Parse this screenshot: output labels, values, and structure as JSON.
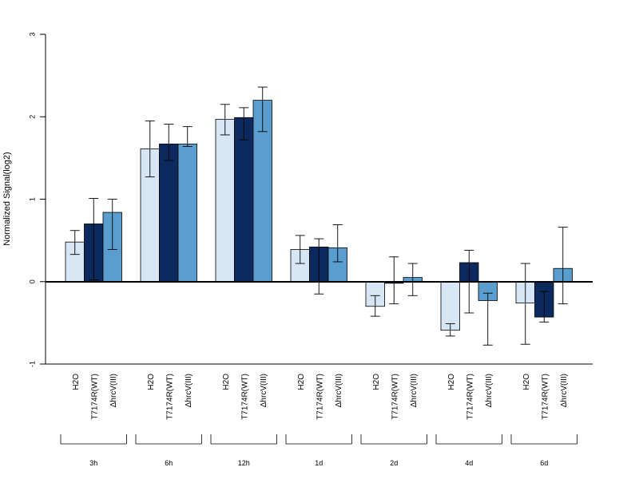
{
  "chart_data": {
    "type": "bar",
    "ylabel": "Normalized Signal(log2)",
    "ylim": [
      -1,
      3
    ],
    "yticks": [
      "-1",
      "0",
      "1",
      "2",
      "3"
    ],
    "ytick_values": [
      -1,
      0,
      1,
      2,
      3
    ],
    "groups": [
      "3h",
      "6h",
      "12h",
      "1d",
      "2d",
      "4d",
      "6d"
    ],
    "series": [
      {
        "name": "H2O",
        "color": "#d6e6f5",
        "values": [
          0.48,
          1.61,
          1.97,
          0.39,
          -0.3,
          -0.59,
          -0.26
        ],
        "err_low": [
          0.33,
          1.27,
          1.78,
          0.22,
          -0.42,
          -0.66,
          -0.76
        ],
        "err_high": [
          0.62,
          1.95,
          2.15,
          0.56,
          -0.17,
          -0.51,
          0.22
        ]
      },
      {
        "name": "T7174R(WT)",
        "color": "#0c2a5e",
        "values": [
          0.7,
          1.67,
          1.99,
          0.42,
          -0.02,
          0.23,
          -0.43
        ],
        "err_low": [
          0.02,
          1.47,
          1.72,
          -0.15,
          -0.27,
          -0.38,
          -0.49
        ],
        "err_high": [
          1.01,
          1.91,
          2.11,
          0.52,
          0.3,
          0.38,
          -0.12
        ]
      },
      {
        "name": "ΔhrcV(III)",
        "color": "#5a9ecf",
        "values": [
          0.84,
          1.67,
          2.2,
          0.41,
          0.05,
          -0.23,
          0.16
        ],
        "err_low": [
          0.39,
          1.64,
          1.82,
          0.24,
          -0.17,
          -0.77,
          -0.27
        ],
        "err_high": [
          1.0,
          1.88,
          2.36,
          0.69,
          0.22,
          -0.14,
          0.66
        ]
      }
    ],
    "grid": false,
    "legend": "none"
  }
}
